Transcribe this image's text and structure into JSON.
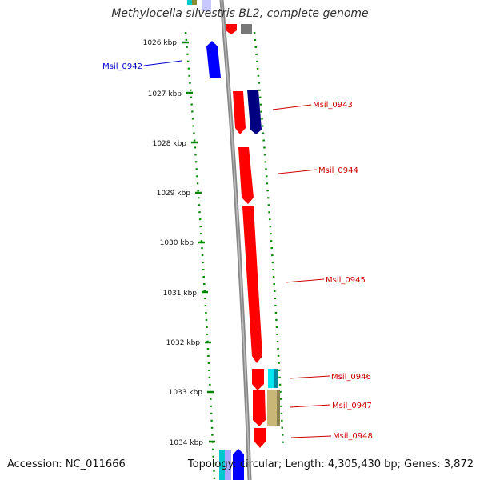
{
  "title": "Methylocella silvestris BL2, complete genome",
  "accession_label": "Accession: NC_011666",
  "topology_label": "Topology: circular; Length: 4,305,430 bp; Genes: 3,872",
  "colors": {
    "forward_gene": "#ff0000",
    "reverse_gene": "#0000ff",
    "dark_gene": "#000080",
    "gray_gene": "#777777",
    "tan_gene": "#c8b878",
    "cyan_gene": "#00e5ee",
    "backbone": "#888888",
    "tick": "#008800",
    "label_red": "#cc0000",
    "label_blue": "#0000cc"
  },
  "kbp_ticks": [
    "1026 kbp",
    "1027 kbp",
    "1028 kbp",
    "1029 kbp",
    "1030 kbp",
    "1031 kbp",
    "1032 kbp",
    "1033 kbp",
    "1034 kbp"
  ],
  "gene_labels": [
    {
      "id": "Msil_0942",
      "strand": "reverse"
    },
    {
      "id": "Msil_0943",
      "strand": "forward"
    },
    {
      "id": "Msil_0944",
      "strand": "forward"
    },
    {
      "id": "Msil_0945",
      "strand": "forward"
    },
    {
      "id": "Msil_0946",
      "strand": "forward"
    },
    {
      "id": "Msil_0947",
      "strand": "forward"
    },
    {
      "id": "Msil_0948",
      "strand": "forward"
    }
  ]
}
